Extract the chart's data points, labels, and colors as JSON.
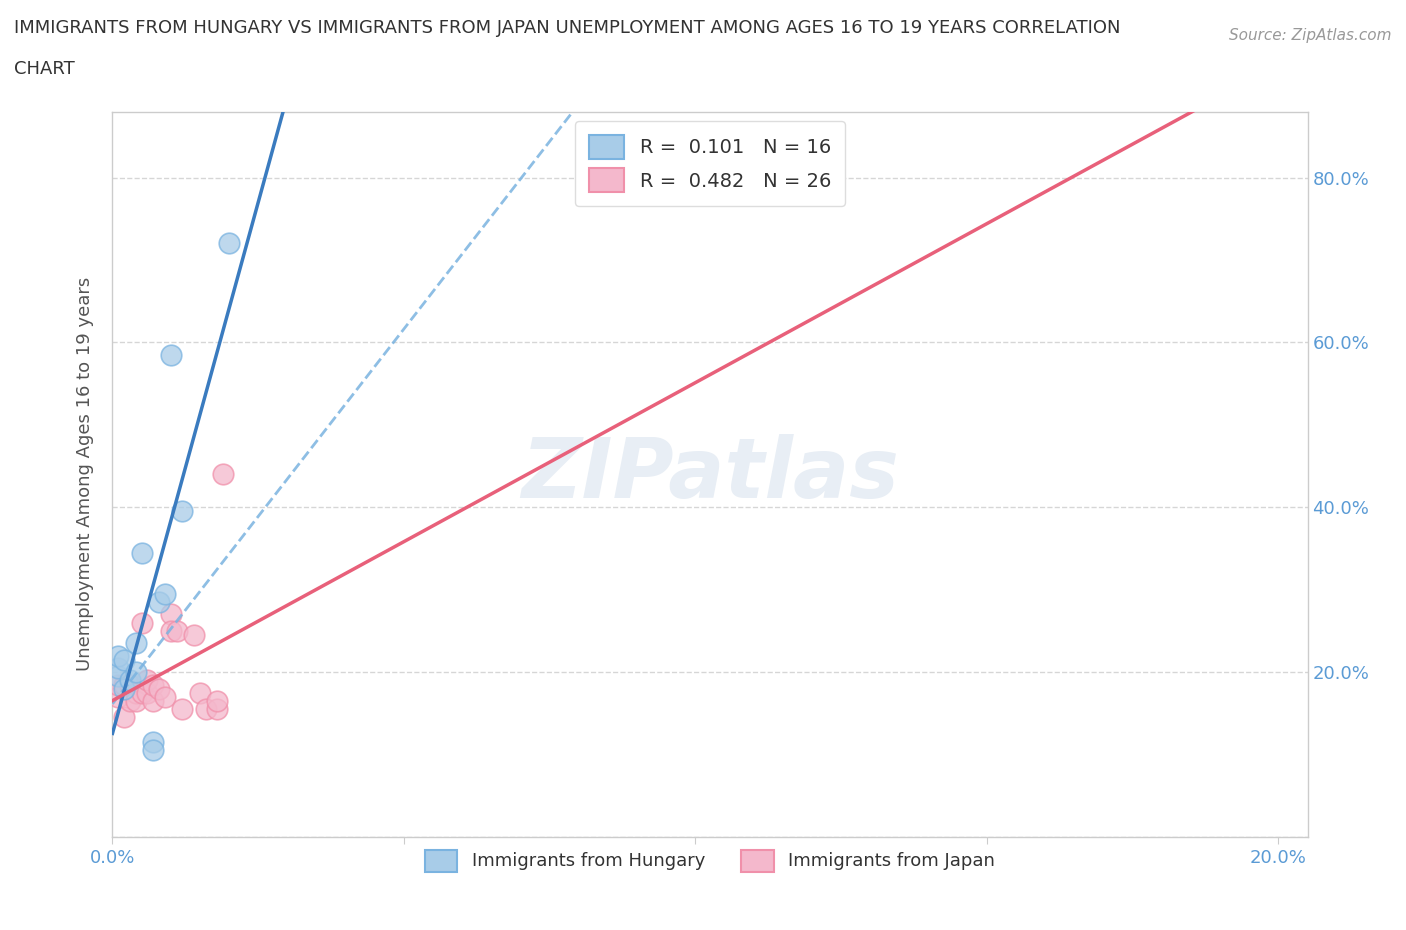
{
  "title_line1": "IMMIGRANTS FROM HUNGARY VS IMMIGRANTS FROM JAPAN UNEMPLOYMENT AMONG AGES 16 TO 19 YEARS CORRELATION",
  "title_line2": "CHART",
  "source": "Source: ZipAtlas.com",
  "ylabel": "Unemployment Among Ages 16 to 19 years",
  "xlim": [
    0.0,
    0.205
  ],
  "ylim": [
    0.0,
    0.88
  ],
  "xticks": [
    0.0,
    0.05,
    0.1,
    0.15,
    0.2
  ],
  "yticks": [
    0.0,
    0.2,
    0.4,
    0.6,
    0.8
  ],
  "ytick_labels_right": [
    "",
    "20.0%",
    "40.0%",
    "60.0%",
    "80.0%"
  ],
  "xtick_labels": [
    "0.0%",
    "",
    "",
    "",
    "20.0%"
  ],
  "hungary_R": 0.101,
  "hungary_N": 16,
  "japan_R": 0.482,
  "japan_N": 26,
  "hungary_color": "#a8cce8",
  "japan_color": "#f4b8cc",
  "hungary_edge_color": "#7ab3e0",
  "japan_edge_color": "#f090aa",
  "hungary_line_color": "#3a7bbf",
  "japan_line_color": "#e8607a",
  "dashed_line_color": "#7ab3e0",
  "watermark_color": "#e8eef5",
  "hungary_x": [
    0.001,
    0.001,
    0.001,
    0.002,
    0.002,
    0.003,
    0.004,
    0.004,
    0.005,
    0.007,
    0.007,
    0.008,
    0.009,
    0.01,
    0.012,
    0.02
  ],
  "hungary_y": [
    0.195,
    0.205,
    0.22,
    0.18,
    0.215,
    0.19,
    0.2,
    0.235,
    0.345,
    0.115,
    0.105,
    0.285,
    0.295,
    0.585,
    0.395,
    0.72
  ],
  "japan_x": [
    0.001,
    0.001,
    0.002,
    0.002,
    0.003,
    0.003,
    0.004,
    0.004,
    0.005,
    0.005,
    0.006,
    0.006,
    0.007,
    0.007,
    0.008,
    0.009,
    0.01,
    0.01,
    0.011,
    0.012,
    0.014,
    0.015,
    0.016,
    0.018,
    0.018,
    0.019
  ],
  "japan_y": [
    0.17,
    0.185,
    0.145,
    0.185,
    0.165,
    0.185,
    0.175,
    0.165,
    0.26,
    0.175,
    0.175,
    0.19,
    0.165,
    0.185,
    0.18,
    0.17,
    0.27,
    0.25,
    0.25,
    0.155,
    0.245,
    0.175,
    0.155,
    0.155,
    0.165,
    0.44
  ]
}
